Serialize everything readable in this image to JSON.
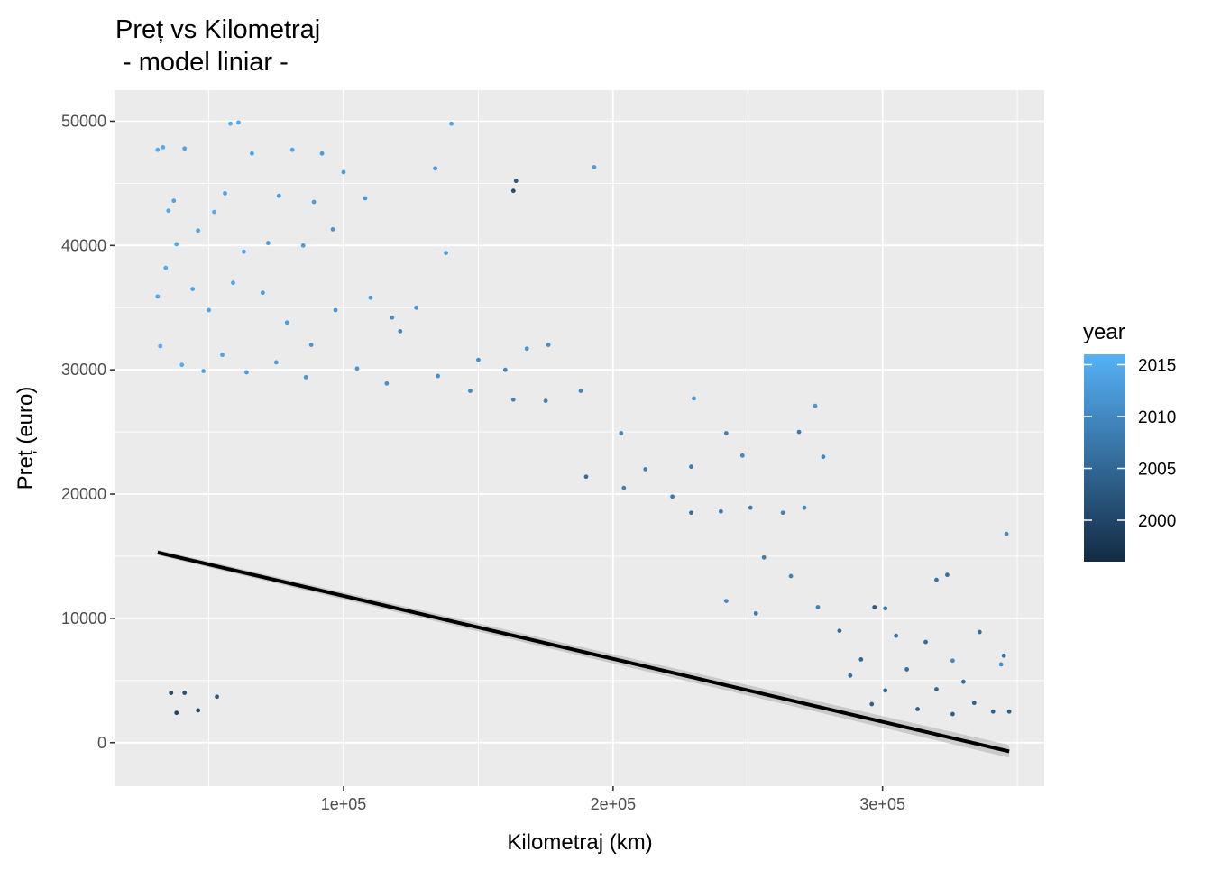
{
  "chart_data": {
    "type": "scatter",
    "title": "Preț vs Kilometraj",
    "subtitle": " - model liniar -",
    "xlabel": "Kilometraj (km)",
    "ylabel": "Preț (euro)",
    "xlim": [
      15000,
      360000
    ],
    "ylim": [
      -3500,
      52500
    ],
    "x_ticks": [
      100000,
      200000,
      300000
    ],
    "x_tick_labels": [
      "1e+05",
      "2e+05",
      "3e+05"
    ],
    "y_ticks": [
      0,
      10000,
      20000,
      30000,
      40000,
      50000
    ],
    "y_tick_labels": [
      "0",
      "10000",
      "20000",
      "30000",
      "40000",
      "50000"
    ],
    "grid": true,
    "legend": {
      "title": "year",
      "position": "right",
      "type": "colorbar",
      "range": [
        1996,
        2016
      ],
      "breaks": [
        2000,
        2005,
        2010,
        2015
      ],
      "break_labels": [
        "2000",
        "2005",
        "2010",
        "2015"
      ],
      "color_low": "#132B43",
      "color_high": "#56B1F7"
    },
    "regression_line": {
      "x": [
        31000,
        347000
      ],
      "y": [
        15300,
        -700
      ],
      "color": "#000000"
    },
    "points": [
      {
        "x": 31000,
        "y": 47700,
        "year": 2015
      },
      {
        "x": 33000,
        "y": 47900,
        "year": 2015
      },
      {
        "x": 41000,
        "y": 47800,
        "year": 2014
      },
      {
        "x": 58000,
        "y": 49800,
        "year": 2015
      },
      {
        "x": 61000,
        "y": 49900,
        "year": 2015
      },
      {
        "x": 140000,
        "y": 49800,
        "year": 2013
      },
      {
        "x": 134000,
        "y": 46200,
        "year": 2012
      },
      {
        "x": 193000,
        "y": 46300,
        "year": 2013
      },
      {
        "x": 164000,
        "y": 45200,
        "year": 2003
      },
      {
        "x": 163000,
        "y": 44400,
        "year": 2001
      },
      {
        "x": 92000,
        "y": 47400,
        "year": 2013
      },
      {
        "x": 81000,
        "y": 47700,
        "year": 2014
      },
      {
        "x": 66000,
        "y": 47400,
        "year": 2014
      },
      {
        "x": 35000,
        "y": 42800,
        "year": 2015
      },
      {
        "x": 37000,
        "y": 43600,
        "year": 2014
      },
      {
        "x": 52000,
        "y": 42700,
        "year": 2015
      },
      {
        "x": 56000,
        "y": 44200,
        "year": 2014
      },
      {
        "x": 76000,
        "y": 44000,
        "year": 2013
      },
      {
        "x": 89000,
        "y": 43500,
        "year": 2013
      },
      {
        "x": 108000,
        "y": 43800,
        "year": 2012
      },
      {
        "x": 100000,
        "y": 45900,
        "year": 2013
      },
      {
        "x": 138000,
        "y": 39400,
        "year": 2013
      },
      {
        "x": 38000,
        "y": 40100,
        "year": 2015
      },
      {
        "x": 46000,
        "y": 41200,
        "year": 2014
      },
      {
        "x": 63000,
        "y": 39500,
        "year": 2014
      },
      {
        "x": 72000,
        "y": 40200,
        "year": 2013
      },
      {
        "x": 85000,
        "y": 40000,
        "year": 2013
      },
      {
        "x": 96000,
        "y": 41300,
        "year": 2012
      },
      {
        "x": 31000,
        "y": 35900,
        "year": 2015
      },
      {
        "x": 34000,
        "y": 38200,
        "year": 2015
      },
      {
        "x": 44000,
        "y": 36500,
        "year": 2014
      },
      {
        "x": 50000,
        "y": 34800,
        "year": 2014
      },
      {
        "x": 59000,
        "y": 37000,
        "year": 2014
      },
      {
        "x": 70000,
        "y": 36200,
        "year": 2013
      },
      {
        "x": 79000,
        "y": 33800,
        "year": 2013
      },
      {
        "x": 88000,
        "y": 32000,
        "year": 2012
      },
      {
        "x": 97000,
        "y": 34800,
        "year": 2012
      },
      {
        "x": 110000,
        "y": 35800,
        "year": 2012
      },
      {
        "x": 118000,
        "y": 34200,
        "year": 2011
      },
      {
        "x": 127000,
        "y": 35000,
        "year": 2011
      },
      {
        "x": 121000,
        "y": 33100,
        "year": 2010
      },
      {
        "x": 32000,
        "y": 31900,
        "year": 2015
      },
      {
        "x": 40000,
        "y": 30400,
        "year": 2015
      },
      {
        "x": 48000,
        "y": 29900,
        "year": 2014
      },
      {
        "x": 55000,
        "y": 31200,
        "year": 2014
      },
      {
        "x": 64000,
        "y": 29800,
        "year": 2013
      },
      {
        "x": 75000,
        "y": 30600,
        "year": 2013
      },
      {
        "x": 86000,
        "y": 29400,
        "year": 2012
      },
      {
        "x": 105000,
        "y": 30100,
        "year": 2012
      },
      {
        "x": 116000,
        "y": 28900,
        "year": 2011
      },
      {
        "x": 135000,
        "y": 29500,
        "year": 2011
      },
      {
        "x": 150000,
        "y": 30800,
        "year": 2011
      },
      {
        "x": 160000,
        "y": 30000,
        "year": 2010
      },
      {
        "x": 168000,
        "y": 31700,
        "year": 2012
      },
      {
        "x": 176000,
        "y": 32000,
        "year": 2011
      },
      {
        "x": 147000,
        "y": 28300,
        "year": 2010
      },
      {
        "x": 163000,
        "y": 27600,
        "year": 2009
      },
      {
        "x": 175000,
        "y": 27500,
        "year": 2009
      },
      {
        "x": 188000,
        "y": 28300,
        "year": 2010
      },
      {
        "x": 230000,
        "y": 27700,
        "year": 2012
      },
      {
        "x": 275000,
        "y": 27100,
        "year": 2012
      },
      {
        "x": 269000,
        "y": 25000,
        "year": 2008
      },
      {
        "x": 203000,
        "y": 24900,
        "year": 2010
      },
      {
        "x": 242000,
        "y": 24900,
        "year": 2009
      },
      {
        "x": 248000,
        "y": 23100,
        "year": 2010
      },
      {
        "x": 278000,
        "y": 23000,
        "year": 2010
      },
      {
        "x": 190000,
        "y": 21400,
        "year": 2006
      },
      {
        "x": 212000,
        "y": 22000,
        "year": 2009
      },
      {
        "x": 229000,
        "y": 22200,
        "year": 2008
      },
      {
        "x": 204000,
        "y": 20500,
        "year": 2009
      },
      {
        "x": 222000,
        "y": 19800,
        "year": 2008
      },
      {
        "x": 240000,
        "y": 18600,
        "year": 2008
      },
      {
        "x": 251000,
        "y": 18900,
        "year": 2008
      },
      {
        "x": 263000,
        "y": 18500,
        "year": 2009
      },
      {
        "x": 271000,
        "y": 18900,
        "year": 2010
      },
      {
        "x": 229000,
        "y": 18500,
        "year": 2006
      },
      {
        "x": 256000,
        "y": 14900,
        "year": 2008
      },
      {
        "x": 266000,
        "y": 13400,
        "year": 2009
      },
      {
        "x": 320000,
        "y": 13100,
        "year": 2007
      },
      {
        "x": 324000,
        "y": 13500,
        "year": 2006
      },
      {
        "x": 346000,
        "y": 16800,
        "year": 2011
      },
      {
        "x": 297000,
        "y": 10900,
        "year": 2003
      },
      {
        "x": 301000,
        "y": 10800,
        "year": 2008
      },
      {
        "x": 276000,
        "y": 10900,
        "year": 2009
      },
      {
        "x": 242000,
        "y": 11400,
        "year": 2010
      },
      {
        "x": 253000,
        "y": 10400,
        "year": 2008
      },
      {
        "x": 284000,
        "y": 9000,
        "year": 2006
      },
      {
        "x": 305000,
        "y": 8600,
        "year": 2007
      },
      {
        "x": 316000,
        "y": 8100,
        "year": 2006
      },
      {
        "x": 336000,
        "y": 8900,
        "year": 2006
      },
      {
        "x": 345000,
        "y": 7000,
        "year": 2007
      },
      {
        "x": 344000,
        "y": 6300,
        "year": 2011
      },
      {
        "x": 326000,
        "y": 6600,
        "year": 2010
      },
      {
        "x": 309000,
        "y": 5900,
        "year": 2006
      },
      {
        "x": 292000,
        "y": 6700,
        "year": 2005
      },
      {
        "x": 288000,
        "y": 5400,
        "year": 2006
      },
      {
        "x": 330000,
        "y": 4900,
        "year": 2006
      },
      {
        "x": 320000,
        "y": 4300,
        "year": 2005
      },
      {
        "x": 301000,
        "y": 4200,
        "year": 2005
      },
      {
        "x": 334000,
        "y": 3200,
        "year": 2004
      },
      {
        "x": 341000,
        "y": 2500,
        "year": 2004
      },
      {
        "x": 347000,
        "y": 2500,
        "year": 2004
      },
      {
        "x": 313000,
        "y": 2700,
        "year": 2004
      },
      {
        "x": 326000,
        "y": 2300,
        "year": 2004
      },
      {
        "x": 296000,
        "y": 3100,
        "year": 2004
      },
      {
        "x": 36000,
        "y": 4000,
        "year": 2001
      },
      {
        "x": 38000,
        "y": 2400,
        "year": 2000
      },
      {
        "x": 41000,
        "y": 4000,
        "year": 2002
      },
      {
        "x": 46000,
        "y": 2600,
        "year": 2001
      },
      {
        "x": 53000,
        "y": 3700,
        "year": 2003
      }
    ]
  }
}
